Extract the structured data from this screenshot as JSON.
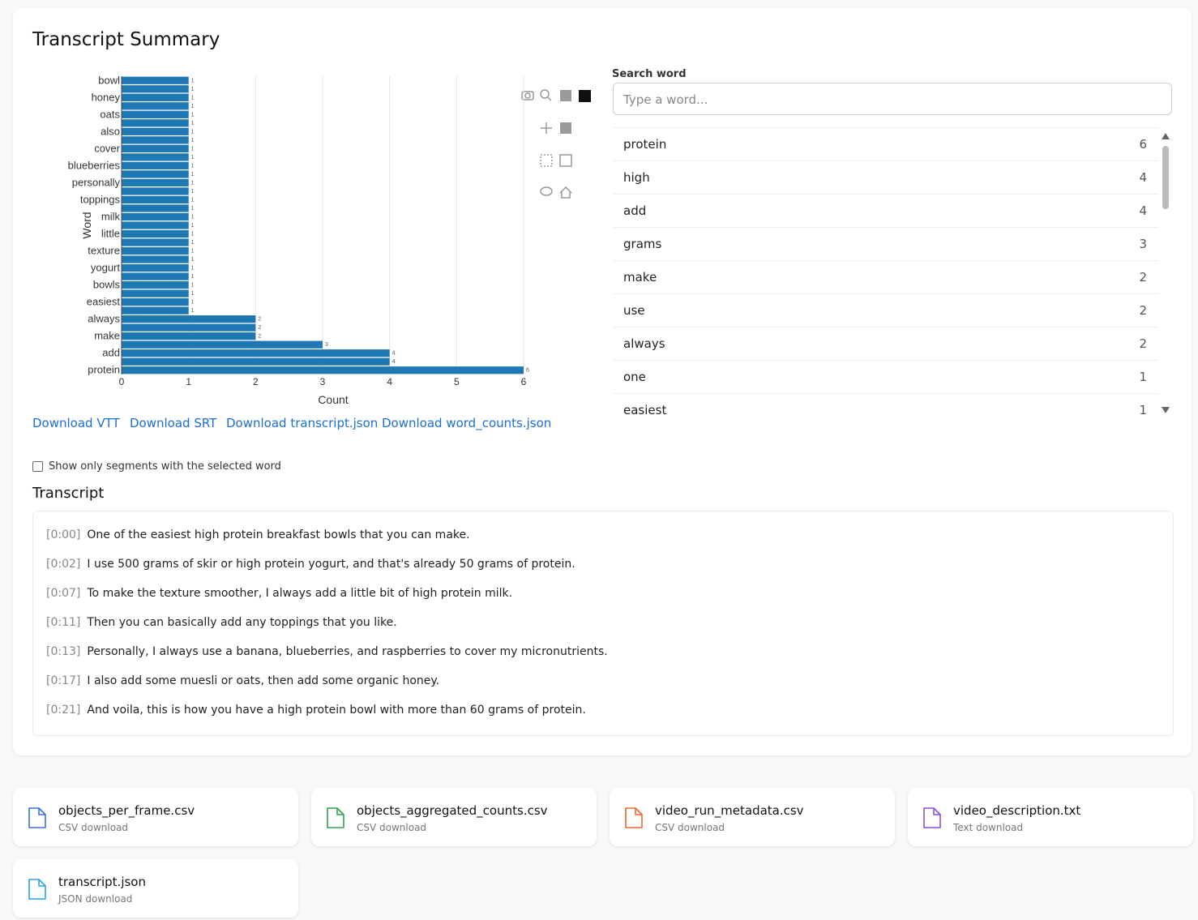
{
  "header": {
    "title": "Transcript Summary"
  },
  "chart_data": {
    "type": "bar",
    "orientation": "horizontal",
    "categories": [
      "protein",
      null,
      "add",
      null,
      "make",
      null,
      "always",
      null,
      "easiest",
      null,
      "bowls",
      null,
      "yogurt",
      null,
      "texture",
      null,
      "little",
      null,
      "milk",
      null,
      "toppings",
      null,
      "personally",
      null,
      "blueberries",
      null,
      "cover",
      null,
      "also",
      null,
      "oats",
      null,
      "honey",
      null,
      "bowl"
    ],
    "values": [
      6,
      4,
      4,
      3,
      2,
      2,
      2,
      1,
      1,
      1,
      1,
      1,
      1,
      1,
      1,
      1,
      1,
      1,
      1,
      1,
      1,
      1,
      1,
      1,
      1,
      1,
      1,
      1,
      1,
      1,
      1,
      1,
      1,
      1,
      1
    ],
    "color": "#1f77b4",
    "xlim": [
      0,
      6.3
    ],
    "xticks": [
      0,
      1,
      2,
      3,
      4,
      5,
      6
    ],
    "x_label": "Count",
    "y_label": "Word",
    "grid": true
  },
  "search": {
    "label": "Search word",
    "placeholder": "Type a word..."
  },
  "word_list": [
    {
      "word": "protein",
      "count": 6
    },
    {
      "word": "high",
      "count": 4
    },
    {
      "word": "add",
      "count": 4
    },
    {
      "word": "grams",
      "count": 3
    },
    {
      "word": "make",
      "count": 2
    },
    {
      "word": "use",
      "count": 2
    },
    {
      "word": "always",
      "count": 2
    },
    {
      "word": "one",
      "count": 1
    },
    {
      "word": "easiest",
      "count": 1
    }
  ],
  "downloads": [
    "Download VTT",
    "Download SRT",
    "Download transcript.json",
    "Download word_counts.json"
  ],
  "filter": {
    "label": "Show only segments with the selected word"
  },
  "transcript": {
    "title": "Transcript",
    "segments": [
      {
        "time": "[0:00]",
        "text": "One of the easiest high protein breakfast bowls that you can make."
      },
      {
        "time": "[0:02]",
        "text": "I use 500 grams of skir or high protein yogurt, and that's already 50 grams of protein."
      },
      {
        "time": "[0:07]",
        "text": "To make the texture smoother, I always add a little bit of high protein milk."
      },
      {
        "time": "[0:11]",
        "text": "Then you can basically add any toppings that you like."
      },
      {
        "time": "[0:13]",
        "text": "Personally, I always use a banana, blueberries, and raspberries to cover my micronutrients."
      },
      {
        "time": "[0:17]",
        "text": "I also add some muesli or oats, then add some organic honey."
      },
      {
        "time": "[0:21]",
        "text": "And voila, this is how you have a high protein bowl with more than 60 grams of protein."
      }
    ]
  },
  "files": [
    {
      "name": "objects_per_frame.csv",
      "type": "CSV download"
    },
    {
      "name": "objects_aggregated_counts.csv",
      "type": "CSV download"
    },
    {
      "name": "video_run_metadata.csv",
      "type": "CSV download"
    },
    {
      "name": "video_description.txt",
      "type": "Text download"
    },
    {
      "name": "transcript.json",
      "type": "JSON download"
    }
  ]
}
